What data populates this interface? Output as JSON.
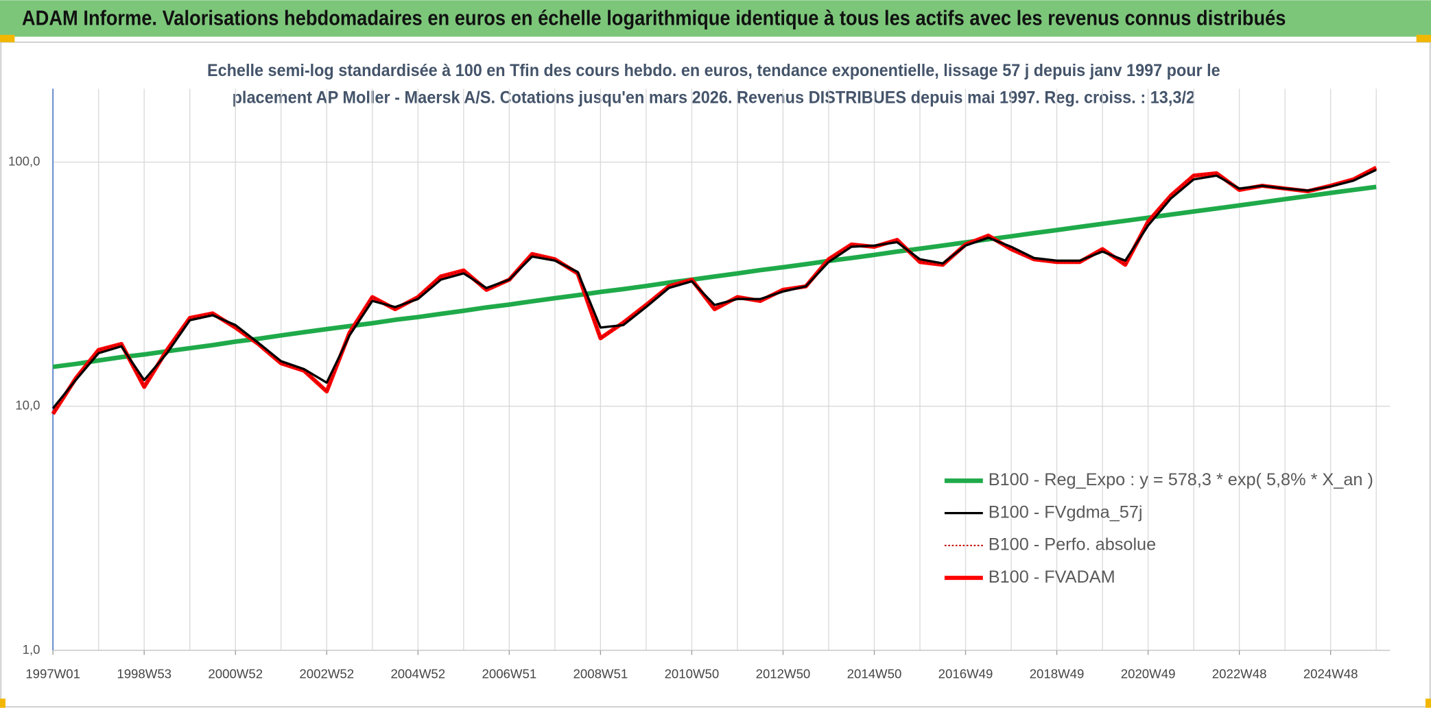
{
  "chart_data": {
    "type": "line",
    "title": "ADAM Informe. Valorisations hebdomadaires en euros en échelle logarithmique identique à tous les actifs avec les revenus connus distribués",
    "subtitle": [
      "Echelle semi-log standardisée à 100 en Tfin des cours hebdo. en euros, tendance exponentielle, lissage 57 j depuis janv 1997 pour le",
      "placement AP Moller - Maersk A/S. Cotations jusqu'en mars 2026. Revenus DISTRIBUES depuis mai 1997. Reg. croiss. : 13,3/2"
    ],
    "categories": [
      "1997W01",
      null,
      null,
      null,
      "1998W53",
      null,
      null,
      null,
      "2000W52",
      null,
      null,
      null,
      "2002W52",
      null,
      null,
      null,
      "2004W52",
      null,
      null,
      null,
      "2006W51",
      null,
      null,
      null,
      "2008W51",
      null,
      null,
      null,
      "2010W50",
      null,
      null,
      null,
      "2012W50",
      null,
      null,
      null,
      "2014W50",
      null,
      null,
      null,
      "2016W49",
      null,
      null,
      null,
      "2018W49",
      null,
      null,
      null,
      "2020W49",
      null,
      null,
      null,
      "2022W48",
      null,
      null,
      null,
      "2024W48",
      null,
      null
    ],
    "log_scale": true,
    "ylim": [
      1,
      200
    ],
    "yticks": [
      {
        "value": 1,
        "label": "1,0"
      },
      {
        "value": 10,
        "label": "10,0"
      },
      {
        "value": 100,
        "label": "100,0"
      }
    ],
    "grid": true,
    "legend": "right",
    "series": [
      {
        "name": "B100 - Reg_Expo : y = 578,3 * exp( 5,8% *  X_an )",
        "color": "#1faa4a",
        "values": [
          14.5,
          14.9,
          15.4,
          15.9,
          16.3,
          16.8,
          17.3,
          17.8,
          18.4,
          18.9,
          19.5,
          20.1,
          20.7,
          21.3,
          21.9,
          22.6,
          23.2,
          23.9,
          24.6,
          25.4,
          26.1,
          26.9,
          27.7,
          28.5,
          29.4,
          30.2,
          31.1,
          32.1,
          33.0,
          34.0,
          35.0,
          36.1,
          37.1,
          38.2,
          39.4,
          40.5,
          41.7,
          43.0,
          44.2,
          45.5,
          46.9,
          48.3,
          49.7,
          51.2,
          52.7,
          54.3,
          55.9,
          57.5,
          59.2,
          61.0,
          62.8,
          64.6,
          66.5,
          68.5,
          70.5,
          72.6,
          74.8,
          77.0,
          79.2
        ]
      },
      {
        "name": "B100 - FVgdma_57j",
        "color": "#000000",
        "values": [
          9.8,
          12.8,
          16.5,
          17.6,
          12.8,
          16.5,
          22.5,
          23.6,
          21.5,
          18.2,
          15.3,
          14.2,
          12.5,
          19.5,
          27,
          25.5,
          27.5,
          33,
          35,
          30.5,
          33,
          41,
          39.5,
          35.5,
          21,
          21.5,
          25.5,
          30.5,
          32.5,
          26,
          27.5,
          27.5,
          29.5,
          31,
          39,
          45,
          45.5,
          47,
          40,
          38.5,
          45.5,
          49,
          45,
          40.5,
          39.5,
          39.5,
          43,
          39.5,
          55,
          71,
          85,
          88,
          78,
          80,
          78,
          76.5,
          79.5,
          84,
          93
        ]
      },
      {
        "name": "B100 - Perfo. absolue",
        "color": "#c00000",
        "dashed": true,
        "values": [
          9.3,
          13,
          17,
          18,
          12,
          17,
          23,
          24,
          21,
          18,
          15,
          14,
          11.5,
          20,
          28,
          25,
          28,
          34,
          36,
          30,
          33,
          42,
          40,
          35,
          19,
          22,
          26,
          31,
          33,
          25,
          28,
          27,
          30,
          31,
          40,
          46,
          45,
          48,
          39,
          38,
          46,
          50,
          44,
          40,
          39,
          39,
          44,
          38,
          57,
          73,
          88,
          90,
          77,
          80,
          78,
          76,
          80,
          85,
          95
        ]
      },
      {
        "name": "B100 - FVADAM",
        "color": "#ff0000",
        "values": [
          9.3,
          13,
          17,
          18,
          12,
          17,
          23,
          24,
          21,
          18,
          15,
          14,
          11.5,
          20,
          28,
          25,
          28,
          34,
          36,
          30,
          33,
          42,
          40,
          35,
          19,
          22,
          26,
          31,
          33,
          25,
          28,
          27,
          30,
          31,
          40,
          46,
          45,
          48,
          39,
          38,
          46,
          50,
          44,
          40,
          39,
          39,
          44,
          38,
          57,
          73,
          88,
          90,
          77,
          80,
          78,
          76,
          80,
          85,
          95
        ]
      }
    ]
  }
}
